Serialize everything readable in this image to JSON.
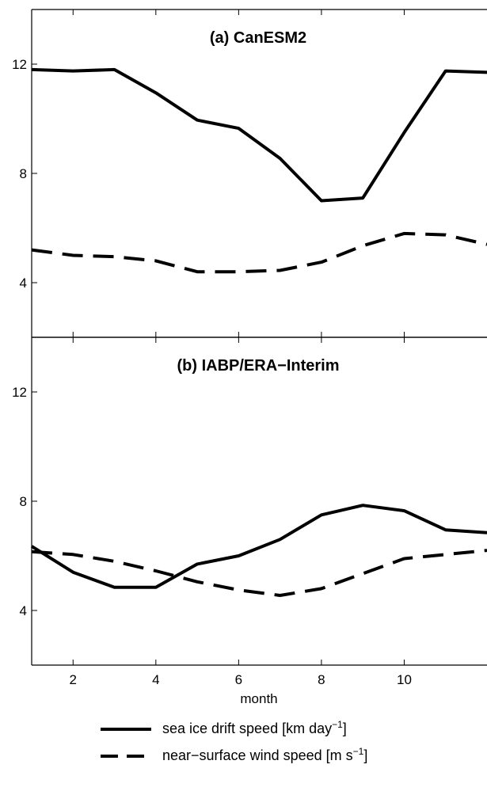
{
  "chart_data": [
    {
      "type": "line",
      "title": "(a) CanESM2",
      "xlabel": "",
      "ylabel": "",
      "xlim": [
        1,
        12
      ],
      "ylim": [
        2,
        14
      ],
      "xticks": [
        2,
        4,
        6,
        8,
        10
      ],
      "yticks": [
        4,
        8,
        12
      ],
      "grid": false,
      "series": [
        {
          "name": "sea ice drift speed",
          "style": "solid",
          "x": [
            1,
            2,
            3,
            4,
            5,
            6,
            7,
            8,
            9,
            10,
            11,
            12
          ],
          "y": [
            11.8,
            11.75,
            11.8,
            10.95,
            9.95,
            9.65,
            8.55,
            7.0,
            7.1,
            9.5,
            11.75,
            11.7
          ]
        },
        {
          "name": "near-surface wind speed",
          "style": "dashed",
          "x": [
            1,
            2,
            3,
            4,
            5,
            6,
            7,
            8,
            9,
            10,
            11,
            12
          ],
          "y": [
            5.2,
            5.0,
            4.95,
            4.8,
            4.4,
            4.4,
            4.45,
            4.75,
            5.35,
            5.8,
            5.75,
            5.4
          ]
        }
      ]
    },
    {
      "type": "line",
      "title": "(b) IABP/ERA−Interim",
      "xlabel": "month",
      "ylabel": "",
      "xlim": [
        1,
        12
      ],
      "ylim": [
        2,
        14
      ],
      "xticks": [
        2,
        4,
        6,
        8,
        10
      ],
      "yticks": [
        4,
        8,
        12
      ],
      "grid": false,
      "series": [
        {
          "name": "sea ice drift speed",
          "style": "solid",
          "x": [
            1,
            2,
            3,
            4,
            5,
            6,
            7,
            8,
            9,
            10,
            11,
            12
          ],
          "y": [
            6.35,
            5.4,
            4.85,
            4.85,
            5.7,
            6.0,
            6.6,
            7.5,
            7.85,
            7.65,
            6.95,
            6.85
          ]
        },
        {
          "name": "near-surface wind speed",
          "style": "dashed",
          "x": [
            1,
            2,
            3,
            4,
            5,
            6,
            7,
            8,
            9,
            10,
            11,
            12
          ],
          "y": [
            6.15,
            6.05,
            5.8,
            5.45,
            5.05,
            4.75,
            4.55,
            4.8,
            5.35,
            5.9,
            6.05,
            6.2
          ]
        }
      ]
    }
  ],
  "legend": {
    "placement": "bottom",
    "items": [
      {
        "style": "solid",
        "label": "sea ice drift speed [km day",
        "superscript": "−1",
        "suffix": "]"
      },
      {
        "style": "dashed",
        "label": "near−surface wind speed [m s",
        "superscript": "−1",
        "suffix": "]"
      }
    ]
  }
}
